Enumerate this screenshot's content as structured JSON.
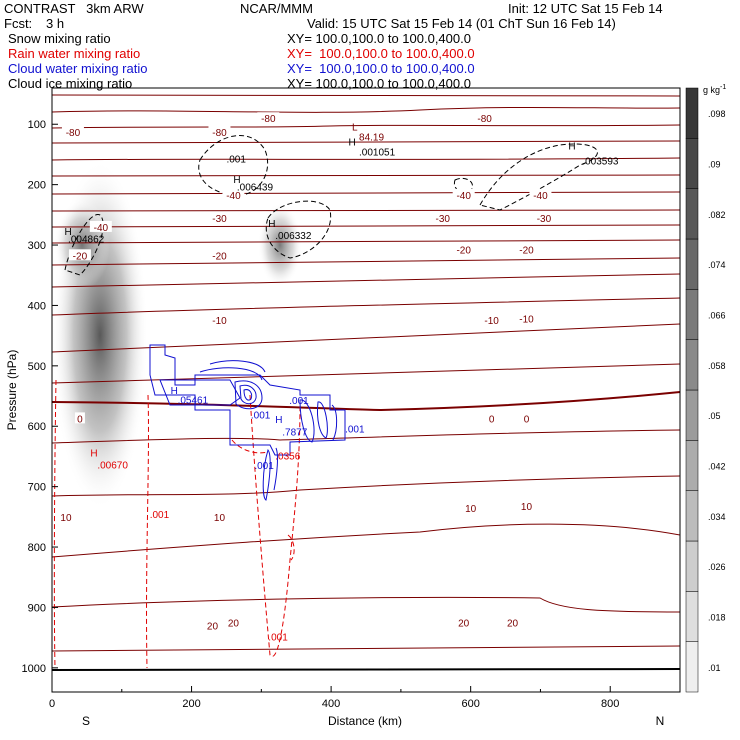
{
  "header": {
    "model": "CONTRAST   3km ARW",
    "center": "NCAR/MMM",
    "init": "Init: 12 UTC Sat 15 Feb 14",
    "fcst_label": "Fcst:",
    "fcst_value": "3 h",
    "valid": "Valid: 15 UTC Sat 15 Feb 14 (01 ChT Sun 16 Feb 14)"
  },
  "legend": [
    {
      "name": "Snow mixing ratio",
      "xy": "XY= 100.0,100.0 to 100.0,400.0",
      "color": "#000000"
    },
    {
      "name": "Rain water mixing ratio",
      "xy": "XY=  100.0,100.0 to 100.0,400.0",
      "color": "#e00000"
    },
    {
      "name": "Cloud water mixing ratio",
      "xy": "XY=  100.0,100.0 to 100.0,400.0",
      "color": "#1010d0"
    },
    {
      "name": "Cloud ice mixing ratio",
      "xy": "XY= 100.0,100.0 to 100.0,400.0",
      "color": "#000000"
    }
  ],
  "chart_data": {
    "type": "cross-section",
    "xlabel": "Distance (km)",
    "ylabel": "Pressure (hPa)",
    "xlim": [
      0,
      900
    ],
    "ylim": [
      1040,
      40
    ],
    "x_ticks": [
      0,
      200,
      400,
      600,
      800
    ],
    "y_ticks": [
      100,
      200,
      300,
      400,
      500,
      600,
      700,
      800,
      900,
      1000
    ],
    "left_end": "S",
    "right_end": "N",
    "colorbar": {
      "unit": "g kg",
      "unit_exp": "-1",
      "levels": [
        ".01",
        ".018",
        ".026",
        ".034",
        ".042",
        ".05",
        ".058",
        ".066",
        ".074",
        ".082",
        ".09",
        ".098"
      ]
    },
    "temperature_color": "#7a0000",
    "temperature_labels": [
      {
        "x": 310,
        "p": 90,
        "text": "-80"
      },
      {
        "x": 620,
        "p": 90,
        "text": "-80"
      },
      {
        "x": 30,
        "p": 113,
        "text": "-80"
      },
      {
        "x": 240,
        "p": 113,
        "text": "-80"
      },
      {
        "x": 70,
        "p": 270,
        "text": "-40"
      },
      {
        "x": 260,
        "p": 217,
        "text": "-40"
      },
      {
        "x": 590,
        "p": 217,
        "text": "-40"
      },
      {
        "x": 700,
        "p": 217,
        "text": "-40"
      },
      {
        "x": 240,
        "p": 255,
        "text": "-30"
      },
      {
        "x": 560,
        "p": 255,
        "text": "-30"
      },
      {
        "x": 705,
        "p": 255,
        "text": "-30"
      },
      {
        "x": 40,
        "p": 317,
        "text": "-20"
      },
      {
        "x": 240,
        "p": 317,
        "text": "-20"
      },
      {
        "x": 590,
        "p": 307,
        "text": "-20"
      },
      {
        "x": 680,
        "p": 307,
        "text": "-20"
      },
      {
        "x": 240,
        "p": 424,
        "text": "-10"
      },
      {
        "x": 630,
        "p": 424,
        "text": "-10"
      },
      {
        "x": 680,
        "p": 422,
        "text": "-10"
      },
      {
        "x": 40,
        "p": 587,
        "text": "0"
      },
      {
        "x": 630,
        "p": 587,
        "text": "0"
      },
      {
        "x": 680,
        "p": 587,
        "text": "0"
      },
      {
        "x": 20,
        "p": 750,
        "text": "10"
      },
      {
        "x": 240,
        "p": 750,
        "text": "10"
      },
      {
        "x": 600,
        "p": 735,
        "text": "10"
      },
      {
        "x": 680,
        "p": 732,
        "text": "10"
      },
      {
        "x": 230,
        "p": 930,
        "text": "20"
      },
      {
        "x": 260,
        "p": 925,
        "text": "20"
      },
      {
        "x": 590,
        "p": 925,
        "text": "20"
      },
      {
        "x": 660,
        "p": 925,
        "text": "20"
      }
    ],
    "annotations": [
      {
        "x": 430,
        "p": 110,
        "text": "L",
        "color": "#7a0000"
      },
      {
        "x": 440,
        "p": 127,
        "text": "84.19",
        "color": "#7a0000"
      },
      {
        "x": 425,
        "p": 135,
        "text": "H",
        "color": "#000000"
      },
      {
        "x": 440,
        "p": 152,
        "text": ".001051",
        "color": "#000000"
      },
      {
        "x": 740,
        "p": 142,
        "text": "H",
        "color": "#000000"
      },
      {
        "x": 760,
        "p": 167,
        "text": ".003593",
        "color": "#000000"
      },
      {
        "x": 260,
        "p": 197,
        "text": "H",
        "color": "#000000"
      },
      {
        "x": 265,
        "p": 210,
        "text": ".006439",
        "color": "#000000"
      },
      {
        "x": 250,
        "p": 163,
        "text": ".001",
        "color": "#000000"
      },
      {
        "x": 18,
        "p": 283,
        "text": "H",
        "color": "#000000"
      },
      {
        "x": 23,
        "p": 296,
        "text": ".004862",
        "color": "#000000"
      },
      {
        "x": 310,
        "p": 270,
        "text": "H",
        "color": "#000000"
      },
      {
        "x": 320,
        "p": 290,
        "text": ".006332",
        "color": "#000000"
      },
      {
        "x": 170,
        "p": 547,
        "text": "H",
        "color": "#1010d0"
      },
      {
        "x": 180,
        "p": 562,
        "text": ".05461",
        "color": "#1010d0"
      },
      {
        "x": 340,
        "p": 563,
        "text": ".001",
        "color": "#1010d0"
      },
      {
        "x": 320,
        "p": 595,
        "text": "H",
        "color": "#1010d0"
      },
      {
        "x": 330,
        "p": 615,
        "text": ".7877",
        "color": "#1010d0"
      },
      {
        "x": 420,
        "p": 610,
        "text": ".001",
        "color": "#1010d0"
      },
      {
        "x": 290,
        "p": 671,
        "text": ".001",
        "color": "#1010d0"
      },
      {
        "x": 285,
        "p": 587,
        "text": ".001",
        "color": "#1010d0"
      },
      {
        "x": 55,
        "p": 650,
        "text": "H",
        "color": "#e00000"
      },
      {
        "x": 65,
        "p": 670,
        "text": ".00670",
        "color": "#e00000"
      },
      {
        "x": 140,
        "p": 752,
        "text": ".001",
        "color": "#e00000"
      },
      {
        "x": 320,
        "p": 655,
        "text": ".0356",
        "color": "#e00000"
      },
      {
        "x": 310,
        "p": 955,
        "text": ".001",
        "color": "#e00000"
      }
    ]
  }
}
